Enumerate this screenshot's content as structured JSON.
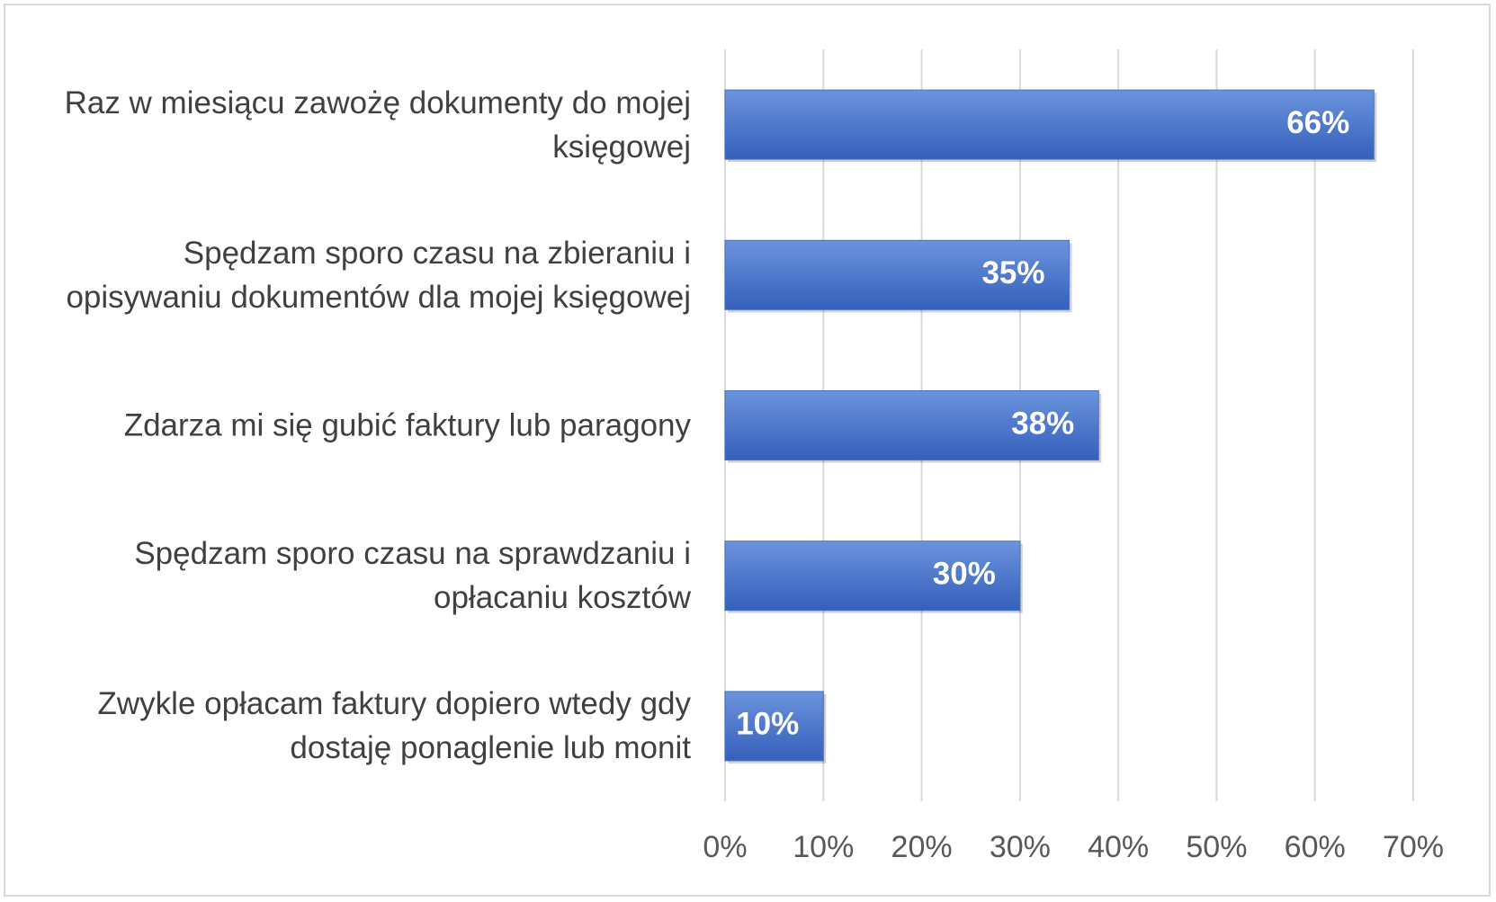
{
  "chart_data": {
    "type": "bar",
    "orientation": "horizontal",
    "categories": [
      "Raz w miesiącu zawożę dokumenty do mojej księgowej",
      "Spędzam sporo czasu na zbieraniu i opisywaniu dokumentów dla mojej księgowej",
      "Zdarza mi się gubić faktury lub paragony",
      "Spędzam sporo czasu na sprawdzaniu i opłacaniu kosztów",
      "Zwykle opłacam faktury dopiero wtedy gdy dostaję ponaglenie lub monit"
    ],
    "values": [
      66,
      35,
      38,
      30,
      10
    ],
    "value_labels": [
      "66%",
      "35%",
      "38%",
      "30%",
      "10%"
    ],
    "color": "#4472c4",
    "xlim": [
      0,
      70
    ],
    "xticks": [
      {
        "value": 0,
        "label": "0%"
      },
      {
        "value": 10,
        "label": "10%"
      },
      {
        "value": 20,
        "label": "20%"
      },
      {
        "value": 30,
        "label": "30%"
      },
      {
        "value": 40,
        "label": "40%"
      },
      {
        "value": 50,
        "label": "50%"
      },
      {
        "value": 60,
        "label": "60%"
      },
      {
        "value": 70,
        "label": "70%"
      }
    ],
    "grid": true
  }
}
